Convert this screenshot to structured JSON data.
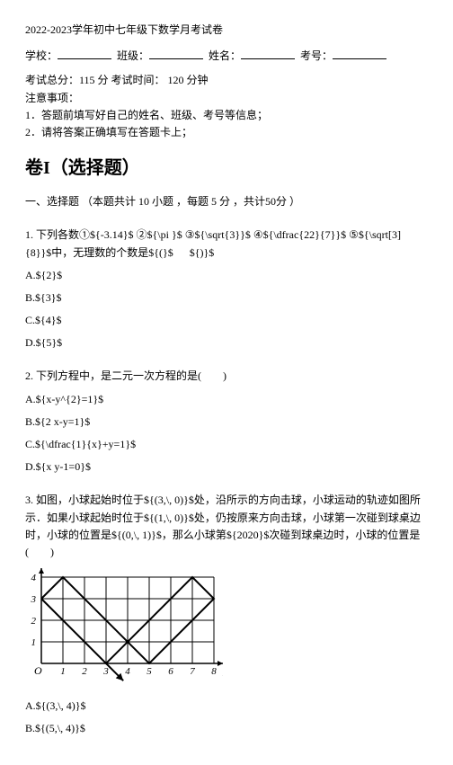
{
  "header": {
    "title": "2022-2023学年初中七年级下数学月考试卷",
    "school_label": "学校：",
    "class_label": "班级：",
    "name_label": "姓名：",
    "exam_id_label": "考号：",
    "total_time": "考试总分：115 分 考试时间：  120 分钟",
    "notice_label": "注意事项：",
    "notice1": "1．答题前填写好自己的姓名、班级、考号等信息；",
    "notice2": "2．请将答案正确填写在答题卡上；"
  },
  "section": {
    "title": "卷I（选择题）",
    "sub": "一、选择题 （本题共计 10 小题 ，每题 5 分 ，共计50分 ）"
  },
  "q1": {
    "stem": "1. 下列各数①${-3.14}$ ②${\\pi }$  ③${\\sqrt{3}}$ ④${\\dfrac{22}{7}}$ ⑤${\\sqrt[3]{8}}$中，无理数的个数是${(}$ 　 ${)}$",
    "a": "A.${2}$",
    "b": "B.${3}$",
    "c": "C.${4}$",
    "d": "D.${5}$"
  },
  "q2": {
    "stem": "2. 下列方程中，是二元一次方程的是(　　)",
    "a": "A.${x-y^{2}=1}$",
    "b": "B.${2 x-y=1}$",
    "c": "C.${\\dfrac{1}{x}+y=1}$",
    "d": "D.${x y-1=0}$"
  },
  "q3": {
    "stem": "3. 如图，小球起始时位于${(3,\\, 0)}$处，沿所示的方向击球，小球运动的轨迹如图所示．如果小球起始时位于${(1,\\, 0)}$处，仍按原来方向击球，小球第一次碰到球桌边时，小球的位置是${(0,\\, 1)}$，那么小球第${2020}$次碰到球桌边时，小球的位置是(　　)",
    "a": "A.${(3,\\, 4)}$",
    "b": "B.${(5,\\, 4)}$"
  },
  "chart": {
    "width_units": 8,
    "height_units": 4,
    "x_ticks": [
      "1",
      "2",
      "3",
      "4",
      "5",
      "6",
      "7",
      "8"
    ],
    "y_ticks": [
      "1",
      "2",
      "3",
      "4"
    ],
    "origin_label": "O",
    "x_axis_var": "x",
    "line_color": "#000000",
    "line_width": 2,
    "grid_color": "#000000",
    "grid_width": 1,
    "path_points": [
      [
        0,
        3
      ],
      [
        3,
        0
      ],
      [
        7,
        4
      ],
      [
        8,
        3
      ],
      [
        5,
        0
      ],
      [
        1,
        4
      ],
      [
        0,
        3
      ]
    ],
    "arrow_from": [
      3,
      0
    ],
    "arrow_to": [
      3.8,
      -0.8
    ]
  }
}
